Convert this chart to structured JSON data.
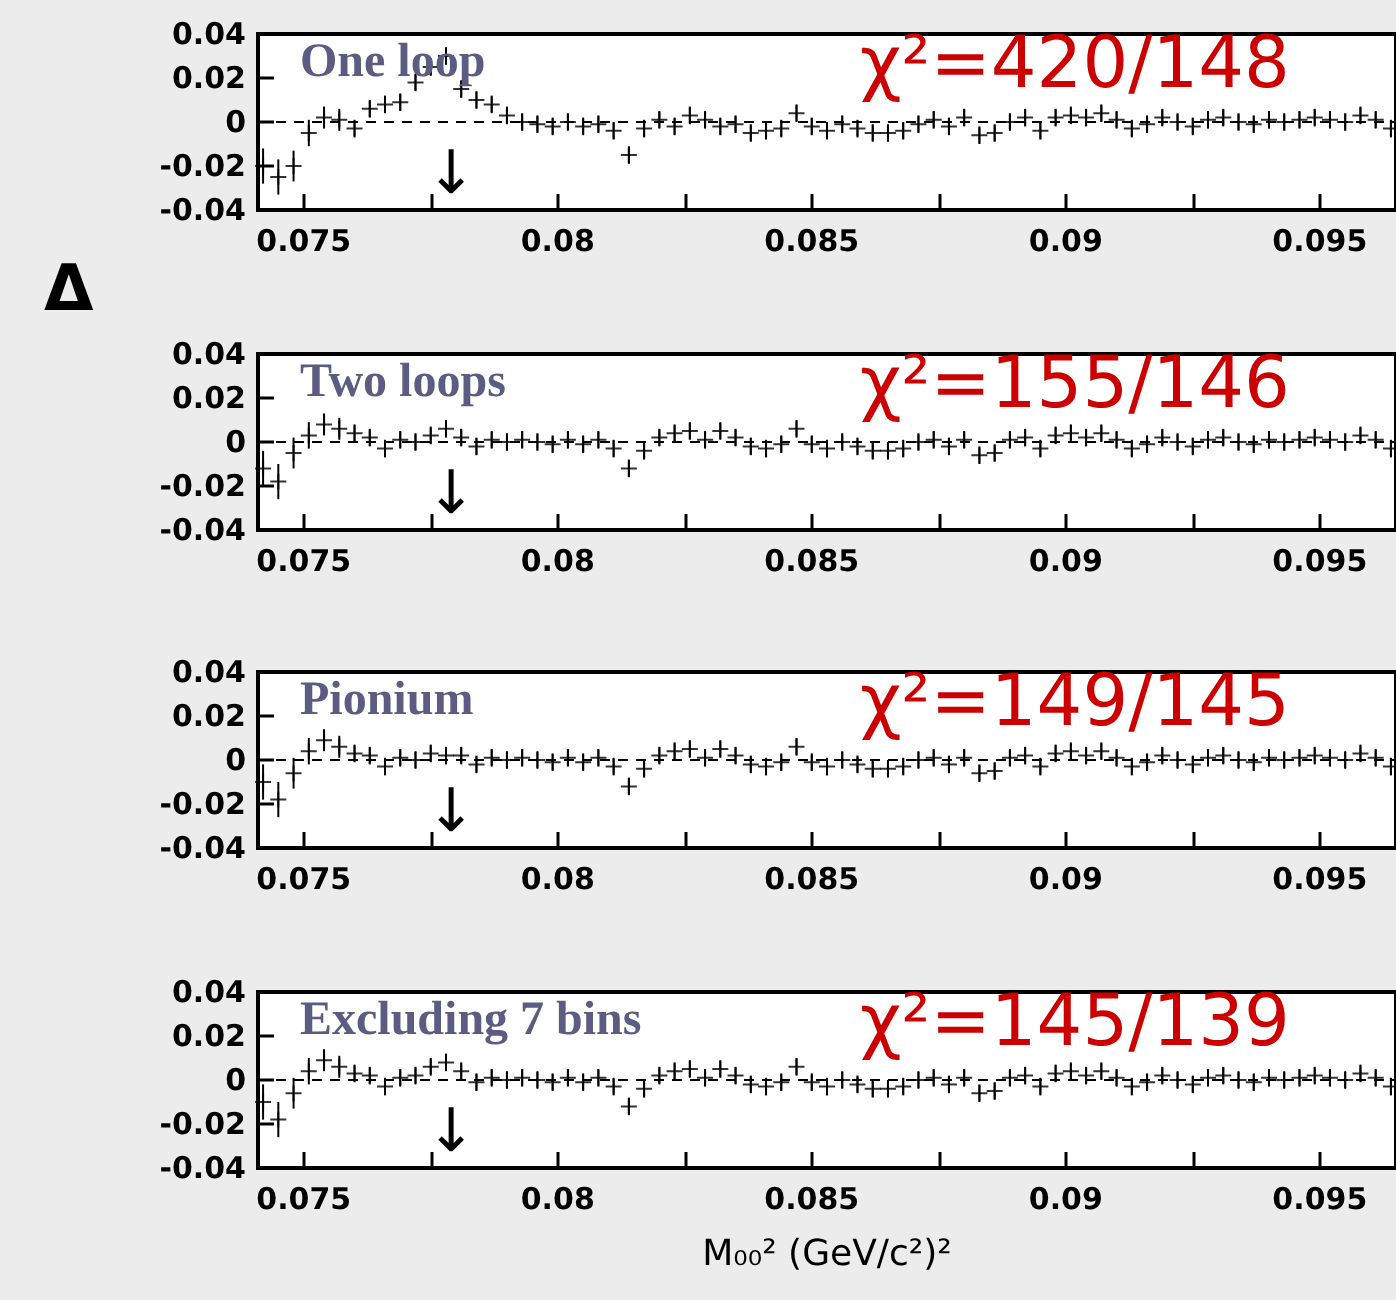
{
  "chart_data": [
    {
      "type": "scatter",
      "title": "One loop",
      "ylabel": "Δ",
      "annotations": [
        "χ²=420/148",
        "↓"
      ],
      "color": "#000000",
      "marker": "cross",
      "ref_lines": [
        {
          "axis": "y",
          "value": 0,
          "line_style": "dashed"
        }
      ],
      "x": [
        0.0742,
        0.0745,
        0.0748,
        0.0751,
        0.0754,
        0.0757,
        0.076,
        0.0763,
        0.0766,
        0.0769,
        0.0772,
        0.0775,
        0.0778,
        0.0781,
        0.0784,
        0.0787,
        0.079,
        0.0793,
        0.0796,
        0.0799,
        0.0802,
        0.0805,
        0.0808,
        0.0811,
        0.0814,
        0.0817,
        0.082,
        0.0823,
        0.0826,
        0.0829,
        0.0832,
        0.0835,
        0.0838,
        0.0841,
        0.0844,
        0.0847,
        0.085,
        0.0853,
        0.0856,
        0.0859,
        0.0862,
        0.0865,
        0.0868,
        0.0871,
        0.0874,
        0.0877,
        0.088,
        0.0883,
        0.0886,
        0.0889,
        0.0892,
        0.0895,
        0.0898,
        0.0901,
        0.0904,
        0.0907,
        0.091,
        0.0913,
        0.0916,
        0.0919,
        0.0922,
        0.0925,
        0.0928,
        0.0931,
        0.0934,
        0.0937,
        0.094,
        0.0943,
        0.0946,
        0.0949,
        0.0952,
        0.0955,
        0.0958,
        0.0961,
        0.0964
      ],
      "values": [
        -0.02,
        -0.025,
        -0.02,
        -0.005,
        0.002,
        0.001,
        -0.003,
        0.006,
        0.008,
        0.009,
        0.018,
        0.025,
        0.03,
        0.015,
        0.01,
        0.008,
        0.003,
        0,
        -0.001,
        -0.002,
        0,
        -0.002,
        -0.001,
        -0.004,
        -0.015,
        -0.003,
        0.001,
        -0.002,
        0.003,
        0.001,
        -0.002,
        -0.001,
        -0.005,
        -0.004,
        -0.003,
        0.004,
        -0.002,
        -0.004,
        -0.001,
        -0.003,
        -0.005,
        -0.005,
        -0.004,
        -0.001,
        0.001,
        -0.002,
        0.002,
        -0.006,
        -0.005,
        0,
        0.002,
        -0.004,
        0.002,
        0.003,
        0.002,
        0.004,
        0.001,
        -0.003,
        -0.001,
        0.002,
        0,
        -0.002,
        0.001,
        0.002,
        0,
        -0.001,
        0.001,
        0,
        0.001,
        0.002,
        0.001,
        0,
        0.003,
        0.001,
        -0.003
      ],
      "errors": [
        0.008,
        0.008,
        0.007,
        0.006,
        0.005,
        0.005,
        0.004,
        0.004,
        0.004,
        0.004,
        0.004,
        0.004,
        0.004,
        0.004,
        0.004,
        0.004,
        0.004,
        0.004,
        0.004,
        0.004,
        0.004,
        0.004,
        0.004,
        0.004,
        0.004,
        0.004,
        0.004,
        0.004,
        0.004,
        0.004,
        0.004,
        0.004,
        0.004,
        0.004,
        0.004,
        0.004,
        0.004,
        0.004,
        0.004,
        0.004,
        0.004,
        0.004,
        0.004,
        0.004,
        0.004,
        0.004,
        0.004,
        0.004,
        0.004,
        0.004,
        0.004,
        0.004,
        0.004,
        0.004,
        0.004,
        0.004,
        0.004,
        0.004,
        0.004,
        0.004,
        0.004,
        0.004,
        0.004,
        0.004,
        0.004,
        0.004,
        0.004,
        0.004,
        0.004,
        0.004,
        0.004,
        0.004,
        0.004,
        0.004,
        0.004
      ],
      "xlim": [
        0.0741,
        0.0965
      ],
      "ylim": [
        -0.04,
        0.04
      ],
      "yticks": [
        -0.04,
        -0.02,
        0,
        0.02,
        0.04
      ],
      "xticks": [
        0.075,
        {
          "value": 0.0775,
          "label": null
        },
        0.08,
        {
          "value": 0.0825,
          "label": null
        },
        0.085,
        {
          "value": 0.0875,
          "label": null
        },
        0.09,
        {
          "value": 0.0925,
          "label": null
        },
        0.095
      ]
    },
    {
      "type": "scatter",
      "title": "Two loops",
      "annotations": [
        "χ²=155/146",
        "↓"
      ],
      "color": "#000000",
      "marker": "cross",
      "ref_lines": [
        {
          "axis": "y",
          "value": 0,
          "line_style": "dashed"
        }
      ],
      "x": [
        0.0742,
        0.0745,
        0.0748,
        0.0751,
        0.0754,
        0.0757,
        0.076,
        0.0763,
        0.0766,
        0.0769,
        0.0772,
        0.0775,
        0.0778,
        0.0781,
        0.0784,
        0.0787,
        0.079,
        0.0793,
        0.0796,
        0.0799,
        0.0802,
        0.0805,
        0.0808,
        0.0811,
        0.0814,
        0.0817,
        0.082,
        0.0823,
        0.0826,
        0.0829,
        0.0832,
        0.0835,
        0.0838,
        0.0841,
        0.0844,
        0.0847,
        0.085,
        0.0853,
        0.0856,
        0.0859,
        0.0862,
        0.0865,
        0.0868,
        0.0871,
        0.0874,
        0.0877,
        0.088,
        0.0883,
        0.0886,
        0.0889,
        0.0892,
        0.0895,
        0.0898,
        0.0901,
        0.0904,
        0.0907,
        0.091,
        0.0913,
        0.0916,
        0.0919,
        0.0922,
        0.0925,
        0.0928,
        0.0931,
        0.0934,
        0.0937,
        0.094,
        0.0943,
        0.0946,
        0.0949,
        0.0952,
        0.0955,
        0.0958,
        0.0961,
        0.0964
      ],
      "values": [
        -0.012,
        -0.018,
        -0.005,
        0.003,
        0.008,
        0.006,
        0.004,
        0.002,
        -0.003,
        0.001,
        0,
        0.003,
        0.006,
        0.002,
        -0.002,
        0.001,
        0,
        0.001,
        0,
        -0.001,
        0.001,
        -0.001,
        0.001,
        -0.003,
        -0.012,
        -0.004,
        0.002,
        0.004,
        0.005,
        0.001,
        0.005,
        0.002,
        -0.002,
        -0.003,
        -0.001,
        0.006,
        -0.001,
        -0.003,
        0,
        -0.002,
        -0.004,
        -0.004,
        -0.003,
        0,
        0.001,
        -0.002,
        0.001,
        -0.006,
        -0.005,
        0.001,
        0.002,
        -0.003,
        0.003,
        0.004,
        0.002,
        0.004,
        0.001,
        -0.003,
        -0.001,
        0.002,
        0,
        -0.002,
        0.001,
        0.002,
        0,
        -0.001,
        0.001,
        0,
        0.001,
        0.002,
        0.001,
        0,
        0.003,
        0.001,
        -0.003
      ],
      "errors": [
        0.008,
        0.008,
        0.007,
        0.006,
        0.005,
        0.005,
        0.004,
        0.004,
        0.004,
        0.004,
        0.004,
        0.004,
        0.004,
        0.004,
        0.004,
        0.004,
        0.004,
        0.004,
        0.004,
        0.004,
        0.004,
        0.004,
        0.004,
        0.004,
        0.004,
        0.004,
        0.004,
        0.004,
        0.004,
        0.004,
        0.004,
        0.004,
        0.004,
        0.004,
        0.004,
        0.004,
        0.004,
        0.004,
        0.004,
        0.004,
        0.004,
        0.004,
        0.004,
        0.004,
        0.004,
        0.004,
        0.004,
        0.004,
        0.004,
        0.004,
        0.004,
        0.004,
        0.004,
        0.004,
        0.004,
        0.004,
        0.004,
        0.004,
        0.004,
        0.004,
        0.004,
        0.004,
        0.004,
        0.004,
        0.004,
        0.004,
        0.004,
        0.004,
        0.004,
        0.004,
        0.004,
        0.004,
        0.004,
        0.004,
        0.004
      ],
      "xlim": [
        0.0741,
        0.0965
      ],
      "ylim": [
        -0.04,
        0.04
      ],
      "yticks": [
        -0.04,
        -0.02,
        0,
        0.02,
        0.04
      ],
      "xticks": [
        0.075,
        {
          "value": 0.0775,
          "label": null
        },
        0.08,
        {
          "value": 0.0825,
          "label": null
        },
        0.085,
        {
          "value": 0.0875,
          "label": null
        },
        0.09,
        {
          "value": 0.0925,
          "label": null
        },
        0.095
      ]
    },
    {
      "type": "scatter",
      "title": "Pionium",
      "annotations": [
        "χ²=149/145",
        "↓"
      ],
      "color": "#000000",
      "marker": "cross",
      "ref_lines": [
        {
          "axis": "y",
          "value": 0,
          "line_style": "dashed"
        }
      ],
      "x": [
        0.0742,
        0.0745,
        0.0748,
        0.0751,
        0.0754,
        0.0757,
        0.076,
        0.0763,
        0.0766,
        0.0769,
        0.0772,
        0.0775,
        0.0778,
        0.0781,
        0.0784,
        0.0787,
        0.079,
        0.0793,
        0.0796,
        0.0799,
        0.0802,
        0.0805,
        0.0808,
        0.0811,
        0.0814,
        0.0817,
        0.082,
        0.0823,
        0.0826,
        0.0829,
        0.0832,
        0.0835,
        0.0838,
        0.0841,
        0.0844,
        0.0847,
        0.085,
        0.0853,
        0.0856,
        0.0859,
        0.0862,
        0.0865,
        0.0868,
        0.0871,
        0.0874,
        0.0877,
        0.088,
        0.0883,
        0.0886,
        0.0889,
        0.0892,
        0.0895,
        0.0898,
        0.0901,
        0.0904,
        0.0907,
        0.091,
        0.0913,
        0.0916,
        0.0919,
        0.0922,
        0.0925,
        0.0928,
        0.0931,
        0.0934,
        0.0937,
        0.094,
        0.0943,
        0.0946,
        0.0949,
        0.0952,
        0.0955,
        0.0958,
        0.0961,
        0.0964
      ],
      "values": [
        -0.01,
        -0.018,
        -0.006,
        0.004,
        0.009,
        0.006,
        0.003,
        0.002,
        -0.003,
        0.001,
        0,
        0.003,
        0.002,
        0.002,
        -0.002,
        0.001,
        0,
        0.001,
        0,
        -0.001,
        0.001,
        -0.001,
        0.001,
        -0.003,
        -0.012,
        -0.004,
        0.002,
        0.004,
        0.005,
        0.001,
        0.005,
        0.002,
        -0.002,
        -0.003,
        -0.001,
        0.006,
        -0.001,
        -0.003,
        0,
        -0.002,
        -0.004,
        -0.004,
        -0.003,
        0,
        0.001,
        -0.002,
        0.001,
        -0.006,
        -0.005,
        0.001,
        0.002,
        -0.003,
        0.003,
        0.004,
        0.002,
        0.004,
        0.001,
        -0.003,
        -0.001,
        0.002,
        0,
        -0.002,
        0.001,
        0.002,
        0,
        -0.001,
        0.001,
        0,
        0.001,
        0.002,
        0.001,
        0,
        0.003,
        0.001,
        -0.003
      ],
      "errors": [
        0.008,
        0.008,
        0.007,
        0.006,
        0.005,
        0.005,
        0.004,
        0.004,
        0.004,
        0.004,
        0.004,
        0.004,
        0.004,
        0.004,
        0.004,
        0.004,
        0.004,
        0.004,
        0.004,
        0.004,
        0.004,
        0.004,
        0.004,
        0.004,
        0.004,
        0.004,
        0.004,
        0.004,
        0.004,
        0.004,
        0.004,
        0.004,
        0.004,
        0.004,
        0.004,
        0.004,
        0.004,
        0.004,
        0.004,
        0.004,
        0.004,
        0.004,
        0.004,
        0.004,
        0.004,
        0.004,
        0.004,
        0.004,
        0.004,
        0.004,
        0.004,
        0.004,
        0.004,
        0.004,
        0.004,
        0.004,
        0.004,
        0.004,
        0.004,
        0.004,
        0.004,
        0.004,
        0.004,
        0.004,
        0.004,
        0.004,
        0.004,
        0.004,
        0.004,
        0.004,
        0.004,
        0.004,
        0.004,
        0.004,
        0.004
      ],
      "xlim": [
        0.0741,
        0.0965
      ],
      "ylim": [
        -0.04,
        0.04
      ],
      "yticks": [
        -0.04,
        -0.02,
        0,
        0.02,
        0.04
      ],
      "xticks": [
        0.075,
        {
          "value": 0.0775,
          "label": null
        },
        0.08,
        {
          "value": 0.0825,
          "label": null
        },
        0.085,
        {
          "value": 0.0875,
          "label": null
        },
        0.09,
        {
          "value": 0.0925,
          "label": null
        },
        0.095
      ]
    },
    {
      "type": "scatter",
      "title": "Excluding 7 bins",
      "xlabel": "M₀₀² (GeV/c²)²",
      "annotations": [
        "χ²=145/139",
        "↓"
      ],
      "color": "#000000",
      "marker": "cross",
      "ref_lines": [
        {
          "axis": "y",
          "value": 0,
          "line_style": "dashed"
        }
      ],
      "x": [
        0.0742,
        0.0745,
        0.0748,
        0.0751,
        0.0754,
        0.0757,
        0.076,
        0.0763,
        0.0766,
        0.0769,
        0.0772,
        0.0775,
        0.0778,
        0.0781,
        0.0784,
        0.0787,
        0.079,
        0.0793,
        0.0796,
        0.0799,
        0.0802,
        0.0805,
        0.0808,
        0.0811,
        0.0814,
        0.0817,
        0.082,
        0.0823,
        0.0826,
        0.0829,
        0.0832,
        0.0835,
        0.0838,
        0.0841,
        0.0844,
        0.0847,
        0.085,
        0.0853,
        0.0856,
        0.0859,
        0.0862,
        0.0865,
        0.0868,
        0.0871,
        0.0874,
        0.0877,
        0.088,
        0.0883,
        0.0886,
        0.0889,
        0.0892,
        0.0895,
        0.0898,
        0.0901,
        0.0904,
        0.0907,
        0.091,
        0.0913,
        0.0916,
        0.0919,
        0.0922,
        0.0925,
        0.0928,
        0.0931,
        0.0934,
        0.0937,
        0.094,
        0.0943,
        0.0946,
        0.0949,
        0.0952,
        0.0955,
        0.0958,
        0.0961,
        0.0964
      ],
      "values": [
        -0.01,
        -0.018,
        -0.006,
        0.004,
        0.009,
        0.006,
        0.003,
        0.002,
        -0.003,
        0.001,
        0.002,
        0.006,
        0.008,
        0.004,
        -0.001,
        0.001,
        0,
        0.001,
        0,
        -0.001,
        0.001,
        -0.001,
        0.001,
        -0.003,
        -0.012,
        -0.004,
        0.002,
        0.004,
        0.005,
        0.001,
        0.005,
        0.002,
        -0.002,
        -0.003,
        -0.001,
        0.006,
        -0.001,
        -0.003,
        0,
        -0.002,
        -0.004,
        -0.004,
        -0.003,
        0,
        0.001,
        -0.002,
        0.001,
        -0.006,
        -0.005,
        0.001,
        0.002,
        -0.003,
        0.003,
        0.004,
        0.002,
        0.004,
        0.001,
        -0.003,
        -0.001,
        0.002,
        0,
        -0.002,
        0.001,
        0.002,
        0,
        -0.001,
        0.001,
        0,
        0.001,
        0.002,
        0.001,
        0,
        0.003,
        0.001,
        -0.003
      ],
      "errors": [
        0.008,
        0.008,
        0.007,
        0.006,
        0.005,
        0.005,
        0.004,
        0.004,
        0.004,
        0.004,
        0.004,
        0.004,
        0.004,
        0.004,
        0.004,
        0.004,
        0.004,
        0.004,
        0.004,
        0.004,
        0.004,
        0.004,
        0.004,
        0.004,
        0.004,
        0.004,
        0.004,
        0.004,
        0.004,
        0.004,
        0.004,
        0.004,
        0.004,
        0.004,
        0.004,
        0.004,
        0.004,
        0.004,
        0.004,
        0.004,
        0.004,
        0.004,
        0.004,
        0.004,
        0.004,
        0.004,
        0.004,
        0.004,
        0.004,
        0.004,
        0.004,
        0.004,
        0.004,
        0.004,
        0.004,
        0.004,
        0.004,
        0.004,
        0.004,
        0.004,
        0.004,
        0.004,
        0.004,
        0.004,
        0.004,
        0.004,
        0.004,
        0.004,
        0.004,
        0.004,
        0.004,
        0.004,
        0.004,
        0.004,
        0.004
      ],
      "xlim": [
        0.0741,
        0.0965
      ],
      "ylim": [
        -0.04,
        0.04
      ],
      "yticks": [
        -0.04,
        -0.02,
        0,
        0.02,
        0.04
      ],
      "xticks": [
        0.075,
        {
          "value": 0.0775,
          "label": null
        },
        0.08,
        {
          "value": 0.0825,
          "label": null
        },
        0.085,
        {
          "value": 0.0875,
          "label": null
        },
        0.09,
        {
          "value": 0.0925,
          "label": null
        },
        0.095
      ]
    }
  ]
}
